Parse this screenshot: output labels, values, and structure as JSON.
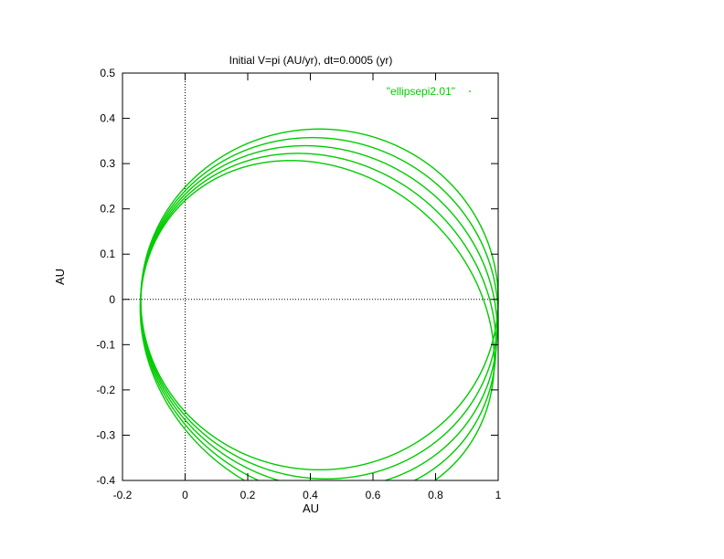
{
  "chart_data": {
    "type": "scatter",
    "title": "Initial V=pi (AU/yr), dt=0.0005 (yr)",
    "xlabel": "AU",
    "ylabel": "AU",
    "xlim": [
      -0.2,
      1
    ],
    "ylim": [
      -0.4,
      0.5
    ],
    "xticks": [
      "-0.2",
      "0",
      "0.2",
      "0.4",
      "0.6",
      "0.8",
      "1"
    ],
    "xtick_values": [
      -0.2,
      0,
      0.2,
      0.4,
      0.6,
      0.8,
      1
    ],
    "yticks": [
      "-0.4",
      "-0.3",
      "-0.2",
      "-0.1",
      "0",
      "0.1",
      "0.2",
      "0.3",
      "0.4",
      "0.5"
    ],
    "ytick_values": [
      -0.4,
      -0.3,
      -0.2,
      -0.1,
      0,
      0.1,
      0.2,
      0.3,
      0.4,
      0.5
    ],
    "zero_axes": true,
    "grid": false,
    "legend_position": "top-right",
    "series": [
      {
        "name": "\"ellipsepi2.01\"",
        "color": "#00cc00",
        "orbits": [
          {
            "start_angle_deg": 0.0,
            "perihelion_x": -0.142
          },
          {
            "start_angle_deg": 2.6,
            "perihelion_x": -0.142
          },
          {
            "start_angle_deg": 5.2,
            "perihelion_x": -0.142
          },
          {
            "start_angle_deg": 7.8,
            "perihelion_x": -0.142
          },
          {
            "start_angle_deg": 10.4,
            "perihelion_x": -0.142
          }
        ]
      }
    ]
  }
}
